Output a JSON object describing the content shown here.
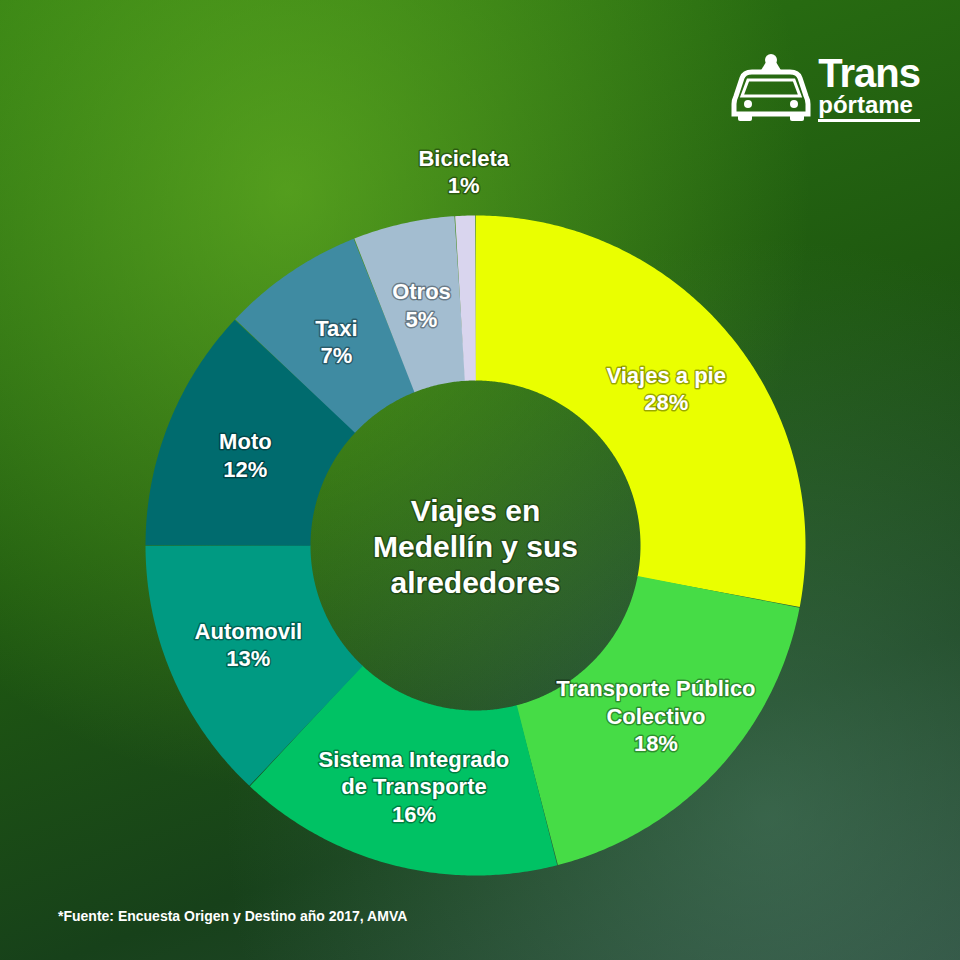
{
  "chart_data": {
    "type": "donut",
    "title": "Viajes en Medellín y sus alrededores",
    "categories": [
      "Viajes a pie",
      "Transporte Público Colectivo",
      "Sistema Integrado de Transporte",
      "Automovil",
      "Moto",
      "Taxi",
      "Otros",
      "Bicicleta"
    ],
    "values": [
      28,
      18,
      16,
      13,
      12,
      7,
      5,
      1
    ],
    "value_labels": [
      "28%",
      "18%",
      "16%",
      "13%",
      "12%",
      "7%",
      "5%",
      "1%"
    ],
    "colors": [
      "#eaff00",
      "#46dc46",
      "#00c264",
      "#009a82",
      "#006b6e",
      "#3f8ba2",
      "#a3bdd0",
      "#d9d5ee"
    ],
    "data_labels": true,
    "source": "*Fuente: Encuesta Origen y Destino año 2017, AMVA",
    "brand": [
      "Trans",
      "pórtame"
    ]
  }
}
